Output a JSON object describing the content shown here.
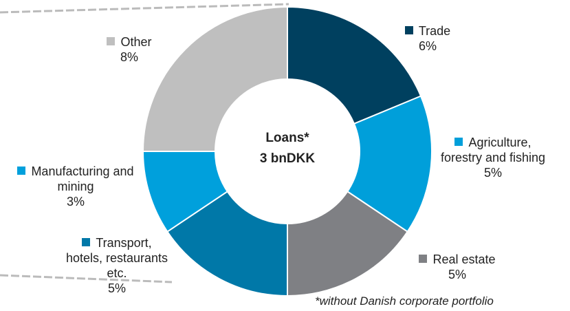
{
  "chart_data": {
    "type": "pie",
    "categories": [
      "Trade",
      "Agriculture, forestry and fishing",
      "Real estate",
      "Transport, hotels, restaurants etc.",
      "Manufacturing and mining",
      "Other"
    ],
    "values": [
      6,
      5,
      5,
      5,
      3,
      8
    ],
    "value_labels": [
      "6%",
      "5%",
      "5%",
      "5%",
      "3%",
      "8%"
    ],
    "colors": [
      "#00405f",
      "#009fda",
      "#7f8084",
      "#0078a8",
      "#00a0dc",
      "#bfbfbf"
    ],
    "center_label": [
      "Loans*",
      "3 bnDKK"
    ],
    "note": "*without Danish corporate portfolio"
  }
}
